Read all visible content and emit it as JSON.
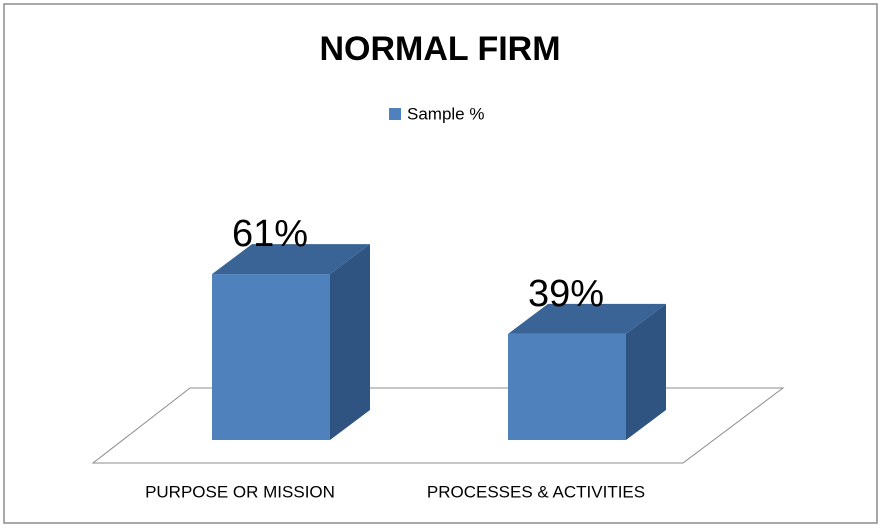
{
  "chart_data": {
    "type": "bar3d",
    "title": "NORMAL FIRM",
    "categories": [
      "PURPOSE OR MISSION",
      "PROCESSES & ACTIVITIES"
    ],
    "series": [
      {
        "name": "Sample %",
        "color": "#4f81bd",
        "values": [
          61,
          39
        ],
        "value_labels": [
          "61%",
          "39%"
        ]
      }
    ]
  }
}
